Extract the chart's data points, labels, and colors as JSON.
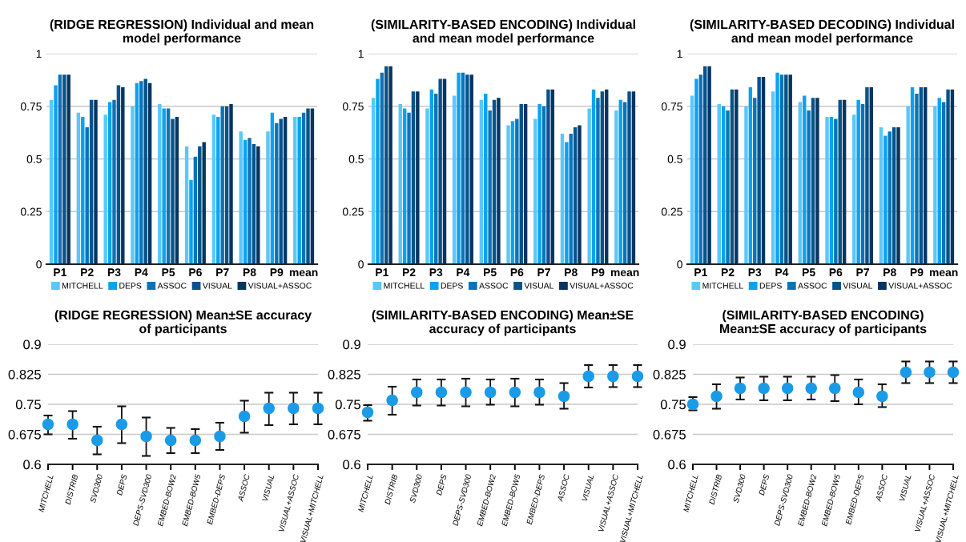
{
  "chart_data": [
    {
      "type": "bar",
      "title": "(RIDGE REGRESSION) Individual and mean\nmodel performance",
      "categories": [
        "P1",
        "P2",
        "P3",
        "P4",
        "P5",
        "P6",
        "P7",
        "P8",
        "P9",
        "mean"
      ],
      "ylim": [
        0,
        1
      ],
      "yticks": [
        0,
        0.25,
        0.5,
        0.75,
        1
      ],
      "grid": "y",
      "legend": "bottom",
      "series": [
        {
          "name": "MITCHELL",
          "color": "#5ac8fa",
          "values": [
            0.78,
            0.72,
            0.71,
            0.75,
            0.76,
            0.56,
            0.71,
            0.63,
            0.63,
            0.7
          ]
        },
        {
          "name": "DEPS",
          "color": "#0aa2f2",
          "values": [
            0.85,
            0.7,
            0.77,
            0.86,
            0.74,
            0.4,
            0.7,
            0.59,
            0.72,
            0.7
          ]
        },
        {
          "name": "ASSOC",
          "color": "#0b74b8",
          "values": [
            0.9,
            0.65,
            0.78,
            0.87,
            0.74,
            0.51,
            0.75,
            0.6,
            0.67,
            0.72
          ]
        },
        {
          "name": "VISUAL",
          "color": "#07538a",
          "values": [
            0.9,
            0.78,
            0.85,
            0.88,
            0.69,
            0.56,
            0.75,
            0.57,
            0.69,
            0.74
          ]
        },
        {
          "name": "VISUAL+ASSOC",
          "color": "#053563",
          "values": [
            0.9,
            0.78,
            0.84,
            0.86,
            0.7,
            0.58,
            0.76,
            0.56,
            0.7,
            0.74
          ]
        }
      ]
    },
    {
      "type": "bar",
      "title": "(SIMILARITY-BASED ENCODING) Individual\nand mean model performance",
      "categories": [
        "P1",
        "P2",
        "P3",
        "P4",
        "P5",
        "P6",
        "P7",
        "P8",
        "P9",
        "mean"
      ],
      "ylim": [
        0,
        1
      ],
      "yticks": [
        0,
        0.25,
        0.5,
        0.75,
        1
      ],
      "grid": "y",
      "legend": "bottom",
      "series": [
        {
          "name": "MITCHELL",
          "color": "#5ac8fa",
          "values": [
            0.79,
            0.76,
            0.74,
            0.8,
            0.78,
            0.66,
            0.69,
            0.62,
            0.74,
            0.73
          ]
        },
        {
          "name": "DEPS",
          "color": "#0aa2f2",
          "values": [
            0.88,
            0.74,
            0.83,
            0.91,
            0.81,
            0.68,
            0.76,
            0.58,
            0.83,
            0.78
          ]
        },
        {
          "name": "ASSOC",
          "color": "#0b74b8",
          "values": [
            0.91,
            0.72,
            0.81,
            0.91,
            0.73,
            0.69,
            0.75,
            0.62,
            0.79,
            0.77
          ]
        },
        {
          "name": "VISUAL",
          "color": "#07538a",
          "values": [
            0.94,
            0.82,
            0.88,
            0.9,
            0.78,
            0.76,
            0.83,
            0.65,
            0.82,
            0.82
          ]
        },
        {
          "name": "VISUAL+ASSOC",
          "color": "#053563",
          "values": [
            0.94,
            0.82,
            0.88,
            0.9,
            0.79,
            0.76,
            0.83,
            0.66,
            0.83,
            0.82
          ]
        }
      ]
    },
    {
      "type": "bar",
      "title": "(SIMILARITY-BASED DECODING) Individual\nand mean model performance",
      "categories": [
        "P1",
        "P2",
        "P3",
        "P4",
        "P5",
        "P6",
        "P7",
        "P8",
        "P9",
        "mean"
      ],
      "ylim": [
        0,
        1
      ],
      "yticks": [
        0,
        0.25,
        0.5,
        0.75,
        1
      ],
      "grid": "y",
      "legend": "bottom",
      "series": [
        {
          "name": "MITCHELL",
          "color": "#5ac8fa",
          "values": [
            0.8,
            0.76,
            0.75,
            0.82,
            0.77,
            0.7,
            0.71,
            0.65,
            0.75,
            0.75
          ]
        },
        {
          "name": "DEPS",
          "color": "#0aa2f2",
          "values": [
            0.88,
            0.75,
            0.84,
            0.91,
            0.8,
            0.7,
            0.78,
            0.61,
            0.84,
            0.79
          ]
        },
        {
          "name": "ASSOC",
          "color": "#0b74b8",
          "values": [
            0.9,
            0.73,
            0.79,
            0.9,
            0.73,
            0.69,
            0.76,
            0.63,
            0.81,
            0.77
          ]
        },
        {
          "name": "VISUAL",
          "color": "#07538a",
          "values": [
            0.94,
            0.83,
            0.89,
            0.9,
            0.79,
            0.78,
            0.84,
            0.65,
            0.84,
            0.83
          ]
        },
        {
          "name": "VISUAL+ASSOC",
          "color": "#053563",
          "values": [
            0.94,
            0.83,
            0.89,
            0.9,
            0.79,
            0.78,
            0.84,
            0.65,
            0.84,
            0.83
          ]
        }
      ]
    },
    {
      "type": "scatter",
      "title": "(RIDGE REGRESSION) Mean±SE accuracy\nof participants",
      "categories": [
        "MITCHELL",
        "DISTRIB",
        "SVD300",
        "DEPS",
        "DEPS-SVD300",
        "EMBED-BOW2",
        "EMBED-BOW5",
        "EMBED-DEPS",
        "ASSOC",
        "VISUAL",
        "VISUAL+ASSOC",
        "VISUAL+MITCHELL"
      ],
      "ylim": [
        0.6,
        0.9
      ],
      "yticks": [
        0.6,
        0.675,
        0.75,
        0.825,
        0.9
      ],
      "grid": "y",
      "marker": "circle",
      "series": [
        {
          "color": "#1a9be8",
          "values": [
            0.7,
            0.7,
            0.66,
            0.7,
            0.67,
            0.66,
            0.66,
            0.67,
            0.72,
            0.74,
            0.74,
            0.74
          ],
          "errors": [
            [
              0.675,
              0.722
            ],
            [
              0.664,
              0.733
            ],
            [
              0.625,
              0.694
            ],
            [
              0.653,
              0.745
            ],
            [
              0.621,
              0.717
            ],
            [
              0.628,
              0.691
            ],
            [
              0.628,
              0.688
            ],
            [
              0.636,
              0.704
            ],
            [
              0.679,
              0.759
            ],
            [
              0.698,
              0.779
            ],
            [
              0.7,
              0.779
            ],
            [
              0.7,
              0.779
            ]
          ]
        }
      ]
    },
    {
      "type": "scatter",
      "title": "(SIMILARITY-BASED ENCODING) Mean±SE\naccuracy of participants",
      "categories": [
        "MITCHELL",
        "DISTRIB",
        "SVD300",
        "DEPS",
        "DEPS-SVD300",
        "EMBED-BOW2",
        "EMBED-BOW5",
        "EMBED-DEPS",
        "ASSOC",
        "VISUAL",
        "VISUAL+ASSOC",
        "VISUAL+MITCHELL"
      ],
      "ylim": [
        0.6,
        0.9
      ],
      "yticks": [
        0.6,
        0.675,
        0.75,
        0.825,
        0.9
      ],
      "grid": "y",
      "marker": "circle",
      "series": [
        {
          "color": "#1a9be8",
          "values": [
            0.73,
            0.76,
            0.78,
            0.78,
            0.78,
            0.78,
            0.78,
            0.78,
            0.77,
            0.82,
            0.82,
            0.82
          ],
          "errors": [
            [
              0.709,
              0.748
            ],
            [
              0.724,
              0.794
            ],
            [
              0.747,
              0.812
            ],
            [
              0.747,
              0.812
            ],
            [
              0.745,
              0.814
            ],
            [
              0.749,
              0.812
            ],
            [
              0.745,
              0.814
            ],
            [
              0.749,
              0.812
            ],
            [
              0.739,
              0.803
            ],
            [
              0.792,
              0.848
            ],
            [
              0.793,
              0.848
            ],
            [
              0.793,
              0.848
            ]
          ]
        }
      ]
    },
    {
      "type": "scatter",
      "title": "(SIMILARITY-BASED ENCODING)\nMean±SE accuracy of participants",
      "categories": [
        "MITCHELL",
        "DISTRIB",
        "SVD300",
        "DEPS",
        "DEPS-SVD300",
        "EMBED-BOW2",
        "EMBED-BOW5",
        "EMBED-DEPS",
        "ASSOC",
        "VISUAL",
        "VISUAL+ASSOC",
        "VISUAL+MITCHELL"
      ],
      "ylim": [
        0.6,
        0.9
      ],
      "yticks": [
        0.6,
        0.675,
        0.75,
        0.825,
        0.9
      ],
      "grid": "y",
      "marker": "circle",
      "series": [
        {
          "color": "#1a9be8",
          "values": [
            0.75,
            0.77,
            0.79,
            0.79,
            0.79,
            0.79,
            0.79,
            0.78,
            0.77,
            0.83,
            0.83,
            0.83
          ],
          "errors": [
            [
              0.735,
              0.768
            ],
            [
              0.739,
              0.8
            ],
            [
              0.762,
              0.817
            ],
            [
              0.76,
              0.819
            ],
            [
              0.76,
              0.819
            ],
            [
              0.762,
              0.819
            ],
            [
              0.758,
              0.823
            ],
            [
              0.75,
              0.812
            ],
            [
              0.743,
              0.8
            ],
            [
              0.803,
              0.857
            ],
            [
              0.803,
              0.857
            ],
            [
              0.803,
              0.857
            ]
          ]
        }
      ]
    }
  ]
}
